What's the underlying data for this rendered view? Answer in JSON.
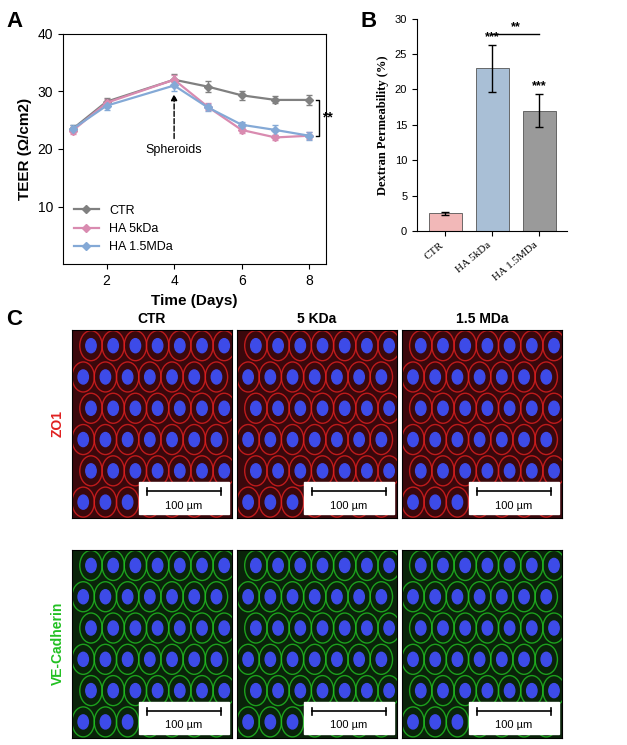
{
  "panel_labels": [
    "A",
    "B",
    "C"
  ],
  "chart_data": [
    {
      "type": "line",
      "x_label": "Time (Days)",
      "y_label": "TEER (Ω/cm2)",
      "x": [
        1,
        2,
        4,
        5,
        6,
        7,
        8
      ],
      "series": [
        {
          "name": "CTR",
          "color": "#808080",
          "marker": "D",
          "values": [
            23.5,
            28.2,
            32.0,
            30.8,
            29.3,
            28.5,
            28.5
          ],
          "errors": [
            0.6,
            0.6,
            1.0,
            0.9,
            0.8,
            0.6,
            0.8
          ]
        },
        {
          "name": "HA 5kDa",
          "color": "#d98bb0",
          "marker": "D",
          "values": [
            23.2,
            28.0,
            32.0,
            27.3,
            23.3,
            22.0,
            22.3
          ],
          "errors": [
            0.6,
            0.6,
            0.9,
            0.6,
            0.5,
            0.5,
            0.6
          ]
        },
        {
          "name": "HA 1.5MDa",
          "color": "#84a9d6",
          "marker": "D",
          "values": [
            23.5,
            27.5,
            31.0,
            27.2,
            24.2,
            23.3,
            22.3
          ],
          "errors": [
            0.6,
            0.7,
            0.9,
            0.6,
            0.5,
            0.8,
            0.7
          ]
        }
      ],
      "xlim": [
        0.7,
        8.5
      ],
      "xticks": [
        2,
        4,
        6,
        8
      ],
      "ylim": [
        0,
        40
      ],
      "yticks": [
        10,
        20,
        30,
        40
      ],
      "legend": "lower left",
      "annotations": [
        {
          "text": "Spheroids",
          "x": 4
        },
        {
          "text": "**",
          "between": [
            "CTR",
            "HA 1.5MDa"
          ]
        }
      ]
    },
    {
      "type": "bar",
      "y_label": "Dextran Permeability (%)",
      "categories": [
        "CTR",
        "HA 5kDa",
        "HA 1.5MDa"
      ],
      "values": [
        2.5,
        23.0,
        17.0
      ],
      "errors": [
        0.2,
        3.3,
        2.3
      ],
      "colors": [
        "#f2b8b8",
        "#a9bfd6",
        "#9a9a9a"
      ],
      "ylim": [
        0,
        30
      ],
      "yticks": [
        0,
        5,
        10,
        15,
        20,
        25,
        30
      ],
      "annotations": [
        {
          "text": "***",
          "category": "HA 5kDa"
        },
        {
          "text": "***",
          "category": "HA 1.5MDa"
        },
        {
          "text": "**",
          "between": [
            "HA 5kDa",
            "HA 1.5MDa"
          ]
        }
      ]
    }
  ],
  "panel_c": {
    "columns": [
      "CTR",
      "5 KDa",
      "1.5 MDa"
    ],
    "rows": [
      {
        "label": "ZO1",
        "color": "#e02020"
      },
      {
        "label": "VE-Cadherin",
        "color": "#22c022"
      }
    ],
    "scale_bar": "100 µm"
  }
}
